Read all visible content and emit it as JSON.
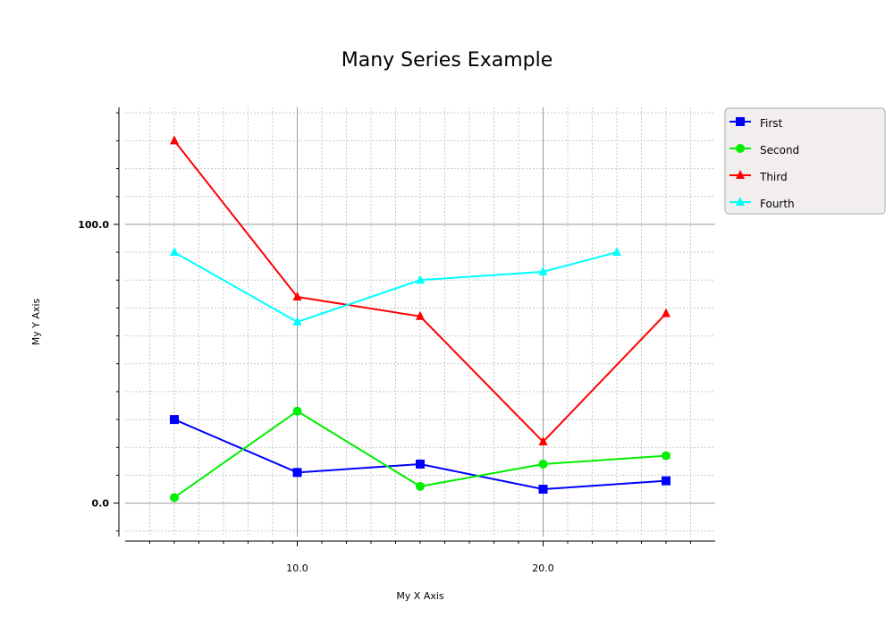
{
  "chart_data": {
    "type": "line",
    "title": "Many Series Example",
    "xlabel": "My X Axis",
    "ylabel": "My Y Axis",
    "xlim": [
      3,
      27
    ],
    "ylim": [
      -12,
      142
    ],
    "x_ticks": [
      10,
      20
    ],
    "x_tick_labels": [
      "10.0",
      "20.0"
    ],
    "y_ticks": [
      0,
      100
    ],
    "y_tick_labels": [
      "0.0",
      "100.0"
    ],
    "grid": true,
    "legend_position": "right",
    "series": [
      {
        "name": "First",
        "color": "#0000ff",
        "marker": "square",
        "x": [
          5,
          10,
          15,
          20,
          25
        ],
        "y": [
          30,
          11,
          14,
          5,
          8
        ]
      },
      {
        "name": "Second",
        "color": "#00ee00",
        "marker": "circle",
        "x": [
          5,
          10,
          15,
          20,
          25
        ],
        "y": [
          2,
          33,
          6,
          14,
          17
        ]
      },
      {
        "name": "Third",
        "color": "#ff0000",
        "marker": "triangle",
        "x": [
          5,
          10,
          15,
          20,
          25
        ],
        "y": [
          130,
          74,
          67,
          22,
          68
        ]
      },
      {
        "name": "Fourth",
        "color": "#00ffff",
        "marker": "triangle",
        "x": [
          5,
          10,
          15,
          20,
          23
        ],
        "y": [
          90,
          65,
          80,
          83,
          90
        ]
      }
    ]
  }
}
